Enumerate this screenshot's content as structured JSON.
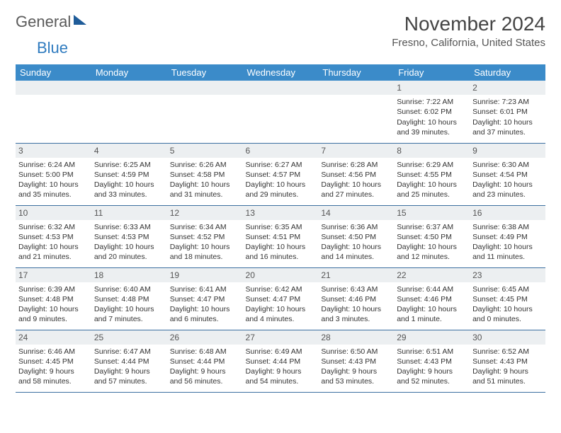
{
  "logo": {
    "part1": "General",
    "part2": "Blue"
  },
  "title": "November 2024",
  "location": "Fresno, California, United States",
  "colors": {
    "header_bg": "#3b8bc9",
    "header_fg": "#ffffff",
    "daynum_bg": "#eceff1",
    "cell_border": "#3b6fa0",
    "text": "#333333",
    "logo_gray": "#5a5a5a",
    "logo_blue": "#2f7bbf"
  },
  "typography": {
    "title_fontsize": 28,
    "location_fontsize": 15,
    "header_fontsize": 13,
    "cell_fontsize": 10.5,
    "daynum_fontsize": 12
  },
  "weekdays": [
    "Sunday",
    "Monday",
    "Tuesday",
    "Wednesday",
    "Thursday",
    "Friday",
    "Saturday"
  ],
  "weeks": [
    [
      {
        "day": "",
        "sunrise": "",
        "sunset": "",
        "daylight": ""
      },
      {
        "day": "",
        "sunrise": "",
        "sunset": "",
        "daylight": ""
      },
      {
        "day": "",
        "sunrise": "",
        "sunset": "",
        "daylight": ""
      },
      {
        "day": "",
        "sunrise": "",
        "sunset": "",
        "daylight": ""
      },
      {
        "day": "",
        "sunrise": "",
        "sunset": "",
        "daylight": ""
      },
      {
        "day": "1",
        "sunrise": "Sunrise: 7:22 AM",
        "sunset": "Sunset: 6:02 PM",
        "daylight": "Daylight: 10 hours and 39 minutes."
      },
      {
        "day": "2",
        "sunrise": "Sunrise: 7:23 AM",
        "sunset": "Sunset: 6:01 PM",
        "daylight": "Daylight: 10 hours and 37 minutes."
      }
    ],
    [
      {
        "day": "3",
        "sunrise": "Sunrise: 6:24 AM",
        "sunset": "Sunset: 5:00 PM",
        "daylight": "Daylight: 10 hours and 35 minutes."
      },
      {
        "day": "4",
        "sunrise": "Sunrise: 6:25 AM",
        "sunset": "Sunset: 4:59 PM",
        "daylight": "Daylight: 10 hours and 33 minutes."
      },
      {
        "day": "5",
        "sunrise": "Sunrise: 6:26 AM",
        "sunset": "Sunset: 4:58 PM",
        "daylight": "Daylight: 10 hours and 31 minutes."
      },
      {
        "day": "6",
        "sunrise": "Sunrise: 6:27 AM",
        "sunset": "Sunset: 4:57 PM",
        "daylight": "Daylight: 10 hours and 29 minutes."
      },
      {
        "day": "7",
        "sunrise": "Sunrise: 6:28 AM",
        "sunset": "Sunset: 4:56 PM",
        "daylight": "Daylight: 10 hours and 27 minutes."
      },
      {
        "day": "8",
        "sunrise": "Sunrise: 6:29 AM",
        "sunset": "Sunset: 4:55 PM",
        "daylight": "Daylight: 10 hours and 25 minutes."
      },
      {
        "day": "9",
        "sunrise": "Sunrise: 6:30 AM",
        "sunset": "Sunset: 4:54 PM",
        "daylight": "Daylight: 10 hours and 23 minutes."
      }
    ],
    [
      {
        "day": "10",
        "sunrise": "Sunrise: 6:32 AM",
        "sunset": "Sunset: 4:53 PM",
        "daylight": "Daylight: 10 hours and 21 minutes."
      },
      {
        "day": "11",
        "sunrise": "Sunrise: 6:33 AM",
        "sunset": "Sunset: 4:53 PM",
        "daylight": "Daylight: 10 hours and 20 minutes."
      },
      {
        "day": "12",
        "sunrise": "Sunrise: 6:34 AM",
        "sunset": "Sunset: 4:52 PM",
        "daylight": "Daylight: 10 hours and 18 minutes."
      },
      {
        "day": "13",
        "sunrise": "Sunrise: 6:35 AM",
        "sunset": "Sunset: 4:51 PM",
        "daylight": "Daylight: 10 hours and 16 minutes."
      },
      {
        "day": "14",
        "sunrise": "Sunrise: 6:36 AM",
        "sunset": "Sunset: 4:50 PM",
        "daylight": "Daylight: 10 hours and 14 minutes."
      },
      {
        "day": "15",
        "sunrise": "Sunrise: 6:37 AM",
        "sunset": "Sunset: 4:50 PM",
        "daylight": "Daylight: 10 hours and 12 minutes."
      },
      {
        "day": "16",
        "sunrise": "Sunrise: 6:38 AM",
        "sunset": "Sunset: 4:49 PM",
        "daylight": "Daylight: 10 hours and 11 minutes."
      }
    ],
    [
      {
        "day": "17",
        "sunrise": "Sunrise: 6:39 AM",
        "sunset": "Sunset: 4:48 PM",
        "daylight": "Daylight: 10 hours and 9 minutes."
      },
      {
        "day": "18",
        "sunrise": "Sunrise: 6:40 AM",
        "sunset": "Sunset: 4:48 PM",
        "daylight": "Daylight: 10 hours and 7 minutes."
      },
      {
        "day": "19",
        "sunrise": "Sunrise: 6:41 AM",
        "sunset": "Sunset: 4:47 PM",
        "daylight": "Daylight: 10 hours and 6 minutes."
      },
      {
        "day": "20",
        "sunrise": "Sunrise: 6:42 AM",
        "sunset": "Sunset: 4:47 PM",
        "daylight": "Daylight: 10 hours and 4 minutes."
      },
      {
        "day": "21",
        "sunrise": "Sunrise: 6:43 AM",
        "sunset": "Sunset: 4:46 PM",
        "daylight": "Daylight: 10 hours and 3 minutes."
      },
      {
        "day": "22",
        "sunrise": "Sunrise: 6:44 AM",
        "sunset": "Sunset: 4:46 PM",
        "daylight": "Daylight: 10 hours and 1 minute."
      },
      {
        "day": "23",
        "sunrise": "Sunrise: 6:45 AM",
        "sunset": "Sunset: 4:45 PM",
        "daylight": "Daylight: 10 hours and 0 minutes."
      }
    ],
    [
      {
        "day": "24",
        "sunrise": "Sunrise: 6:46 AM",
        "sunset": "Sunset: 4:45 PM",
        "daylight": "Daylight: 9 hours and 58 minutes."
      },
      {
        "day": "25",
        "sunrise": "Sunrise: 6:47 AM",
        "sunset": "Sunset: 4:44 PM",
        "daylight": "Daylight: 9 hours and 57 minutes."
      },
      {
        "day": "26",
        "sunrise": "Sunrise: 6:48 AM",
        "sunset": "Sunset: 4:44 PM",
        "daylight": "Daylight: 9 hours and 56 minutes."
      },
      {
        "day": "27",
        "sunrise": "Sunrise: 6:49 AM",
        "sunset": "Sunset: 4:44 PM",
        "daylight": "Daylight: 9 hours and 54 minutes."
      },
      {
        "day": "28",
        "sunrise": "Sunrise: 6:50 AM",
        "sunset": "Sunset: 4:43 PM",
        "daylight": "Daylight: 9 hours and 53 minutes."
      },
      {
        "day": "29",
        "sunrise": "Sunrise: 6:51 AM",
        "sunset": "Sunset: 4:43 PM",
        "daylight": "Daylight: 9 hours and 52 minutes."
      },
      {
        "day": "30",
        "sunrise": "Sunrise: 6:52 AM",
        "sunset": "Sunset: 4:43 PM",
        "daylight": "Daylight: 9 hours and 51 minutes."
      }
    ]
  ]
}
